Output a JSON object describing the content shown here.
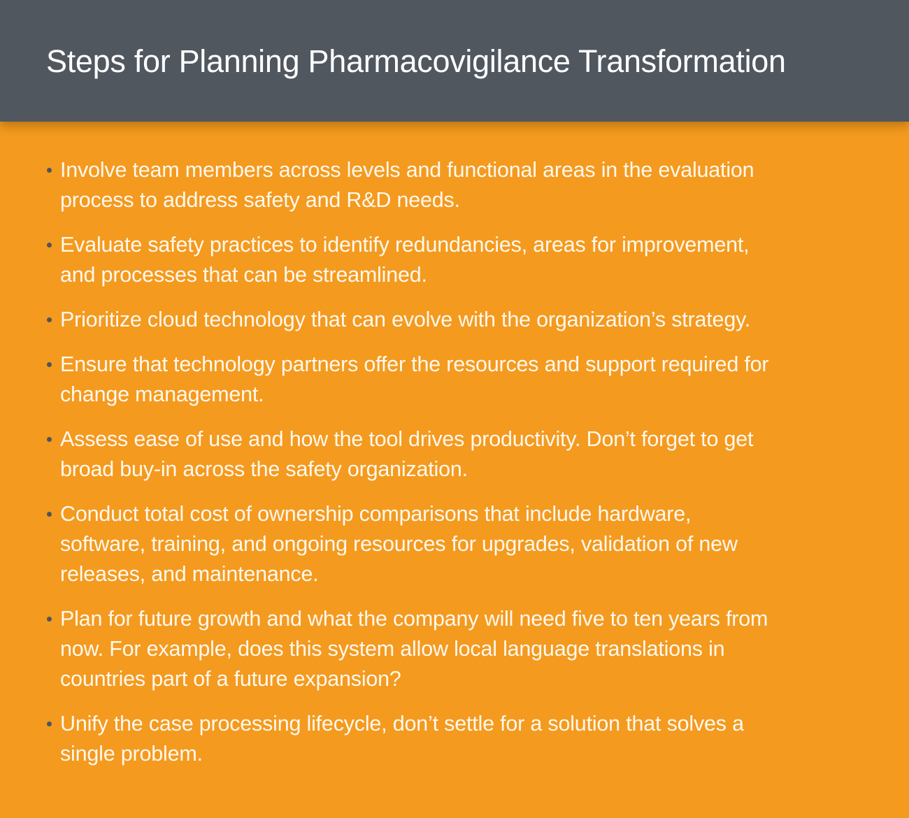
{
  "header": {
    "title": "Steps for Planning Pharmacovigilance Transformation"
  },
  "colors": {
    "header_bg": "#51575f",
    "body_bg": "#f49a1f",
    "text": "#fff8ee",
    "bullet": "#4e555c"
  },
  "items": [
    {
      "lines": [
        "Involve team members across levels and functional areas in the evaluation",
        "process to address safety and R&D needs."
      ]
    },
    {
      "lines": [
        "Evaluate safety practices to identify redundancies, areas for improvement,",
        "and processes that can be streamlined."
      ]
    },
    {
      "lines": [
        "Prioritize cloud technology that can evolve with the organization’s strategy."
      ]
    },
    {
      "lines": [
        "Ensure that technology partners offer the resources and support required for",
        "change management."
      ]
    },
    {
      "lines": [
        "Assess ease of use and how the tool drives productivity. Don’t forget to get",
        "broad buy-in across the safety organization."
      ]
    },
    {
      "lines": [
        "Conduct total cost of ownership comparisons that include hardware,",
        "software, training, and ongoing resources for upgrades, validation of new",
        "releases, and maintenance."
      ]
    },
    {
      "lines": [
        "Plan for future growth and what the company will need five to ten years from",
        "now. For example, does this system allow local language translations in",
        "countries part of a future expansion?"
      ]
    },
    {
      "lines": [
        "Unify the case processing lifecycle, don’t settle for a solution that solves a",
        "single problem."
      ]
    }
  ]
}
